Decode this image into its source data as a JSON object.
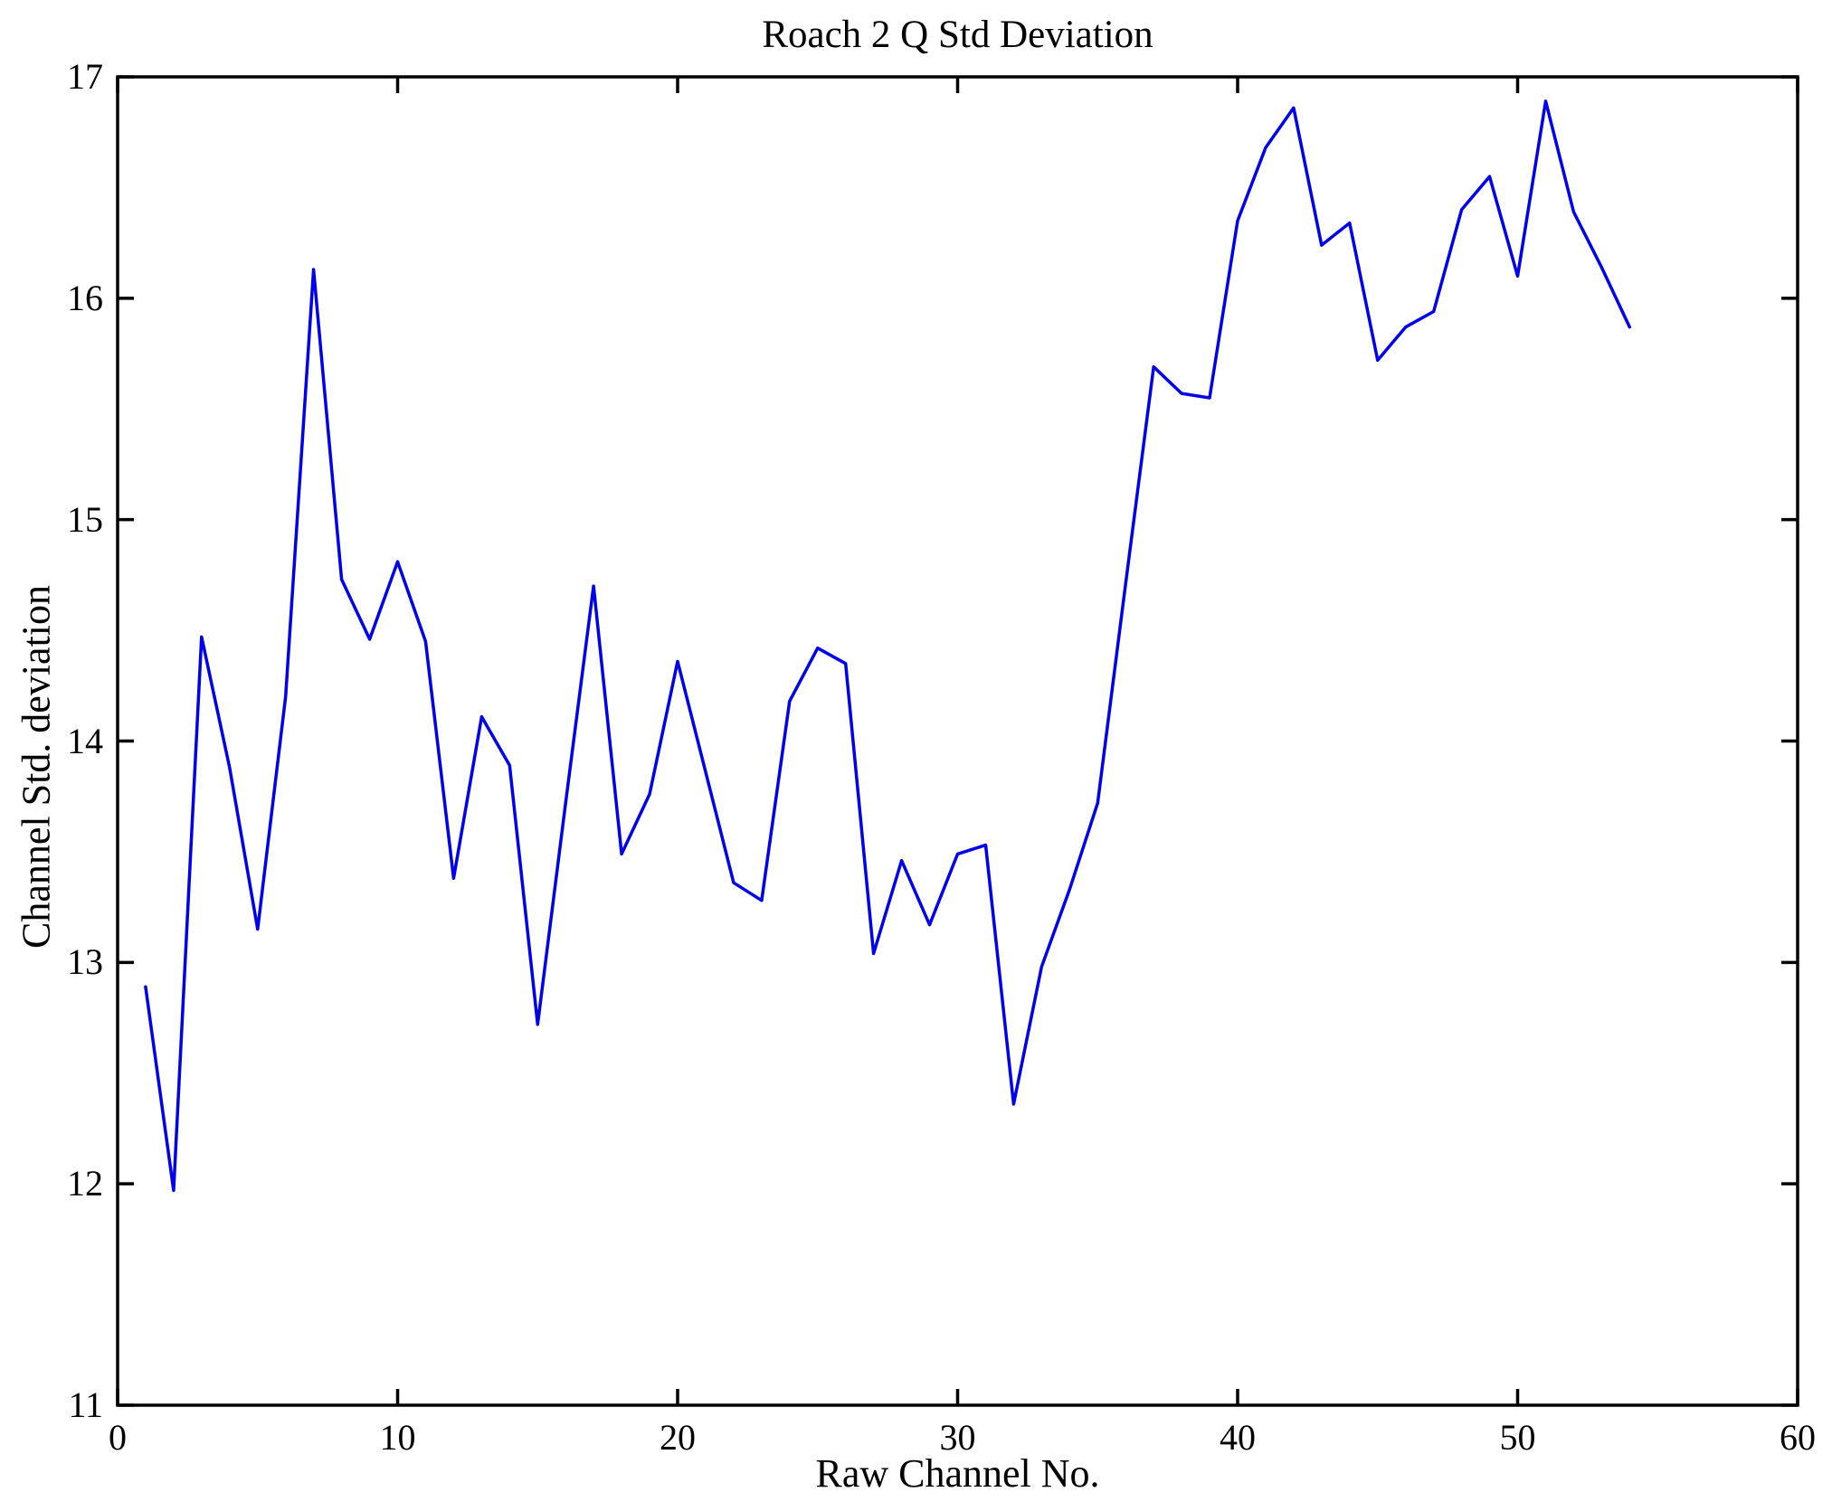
{
  "chart_data": {
    "type": "line",
    "title": "Roach 2 Q Std Deviation",
    "xlabel": "Raw Channel No.",
    "ylabel": "Channel Std. deviation",
    "xlim": [
      0,
      60
    ],
    "ylim": [
      11,
      17
    ],
    "xticks": [
      0,
      10,
      20,
      30,
      40,
      50,
      60
    ],
    "yticks": [
      11,
      12,
      13,
      14,
      15,
      16,
      17
    ],
    "grid": false,
    "legend": null,
    "line_color": "#0000ee",
    "axis_color": "#000000",
    "background_color": "#ffffff",
    "x": [
      1,
      2,
      3,
      4,
      5,
      6,
      7,
      8,
      9,
      10,
      11,
      12,
      13,
      14,
      15,
      16,
      17,
      18,
      19,
      20,
      21,
      22,
      23,
      24,
      25,
      26,
      27,
      28,
      29,
      30,
      31,
      32,
      33,
      34,
      35,
      36,
      37,
      38,
      39,
      40,
      41,
      42,
      43,
      44,
      45,
      46,
      47,
      48,
      49,
      50,
      51,
      52,
      53,
      54
    ],
    "y": [
      12.89,
      11.97,
      14.47,
      13.88,
      13.15,
      14.2,
      16.13,
      14.73,
      14.46,
      14.81,
      14.45,
      13.38,
      14.11,
      13.89,
      12.72,
      13.72,
      14.7,
      13.49,
      13.76,
      14.36,
      13.86,
      13.36,
      13.28,
      14.18,
      14.42,
      14.35,
      13.04,
      13.46,
      13.17,
      13.49,
      13.53,
      12.36,
      12.98,
      13.33,
      13.72,
      14.71,
      15.69,
      15.57,
      15.55,
      16.35,
      16.68,
      16.86,
      16.24,
      16.34,
      15.72,
      15.87,
      15.94,
      16.4,
      16.55,
      16.1,
      16.89,
      16.39,
      16.14,
      15.87
    ]
  }
}
